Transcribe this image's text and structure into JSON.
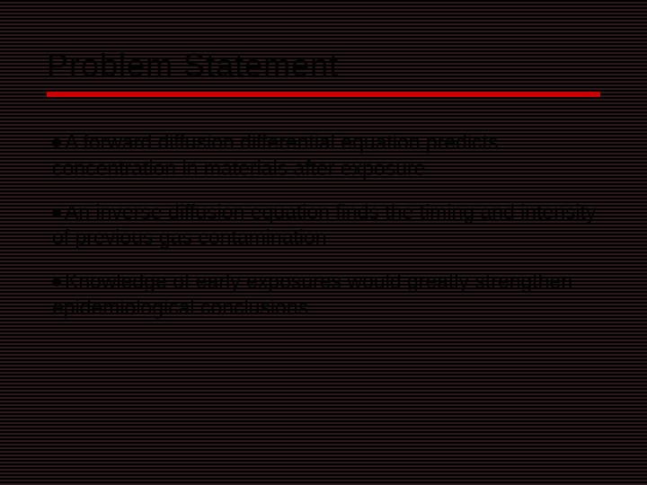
{
  "slide": {
    "title": "Problem Statement",
    "bullets": [
      "A forward diffusion differential equation predicts concentration in materials after exposure",
      "An inverse diffusion equation finds the timing and intensity of previous gas contamination",
      "Knowledge of early exposures would greatly strengthen epidemiological conclusions"
    ],
    "colors": {
      "background": "#000000",
      "stripe": "#2a1a1a",
      "underline": "#cc0000",
      "text": "#000000"
    },
    "typography": {
      "title_fontsize": 36,
      "body_fontsize": 23,
      "title_font": "Verdana",
      "body_font": "Arial"
    }
  }
}
